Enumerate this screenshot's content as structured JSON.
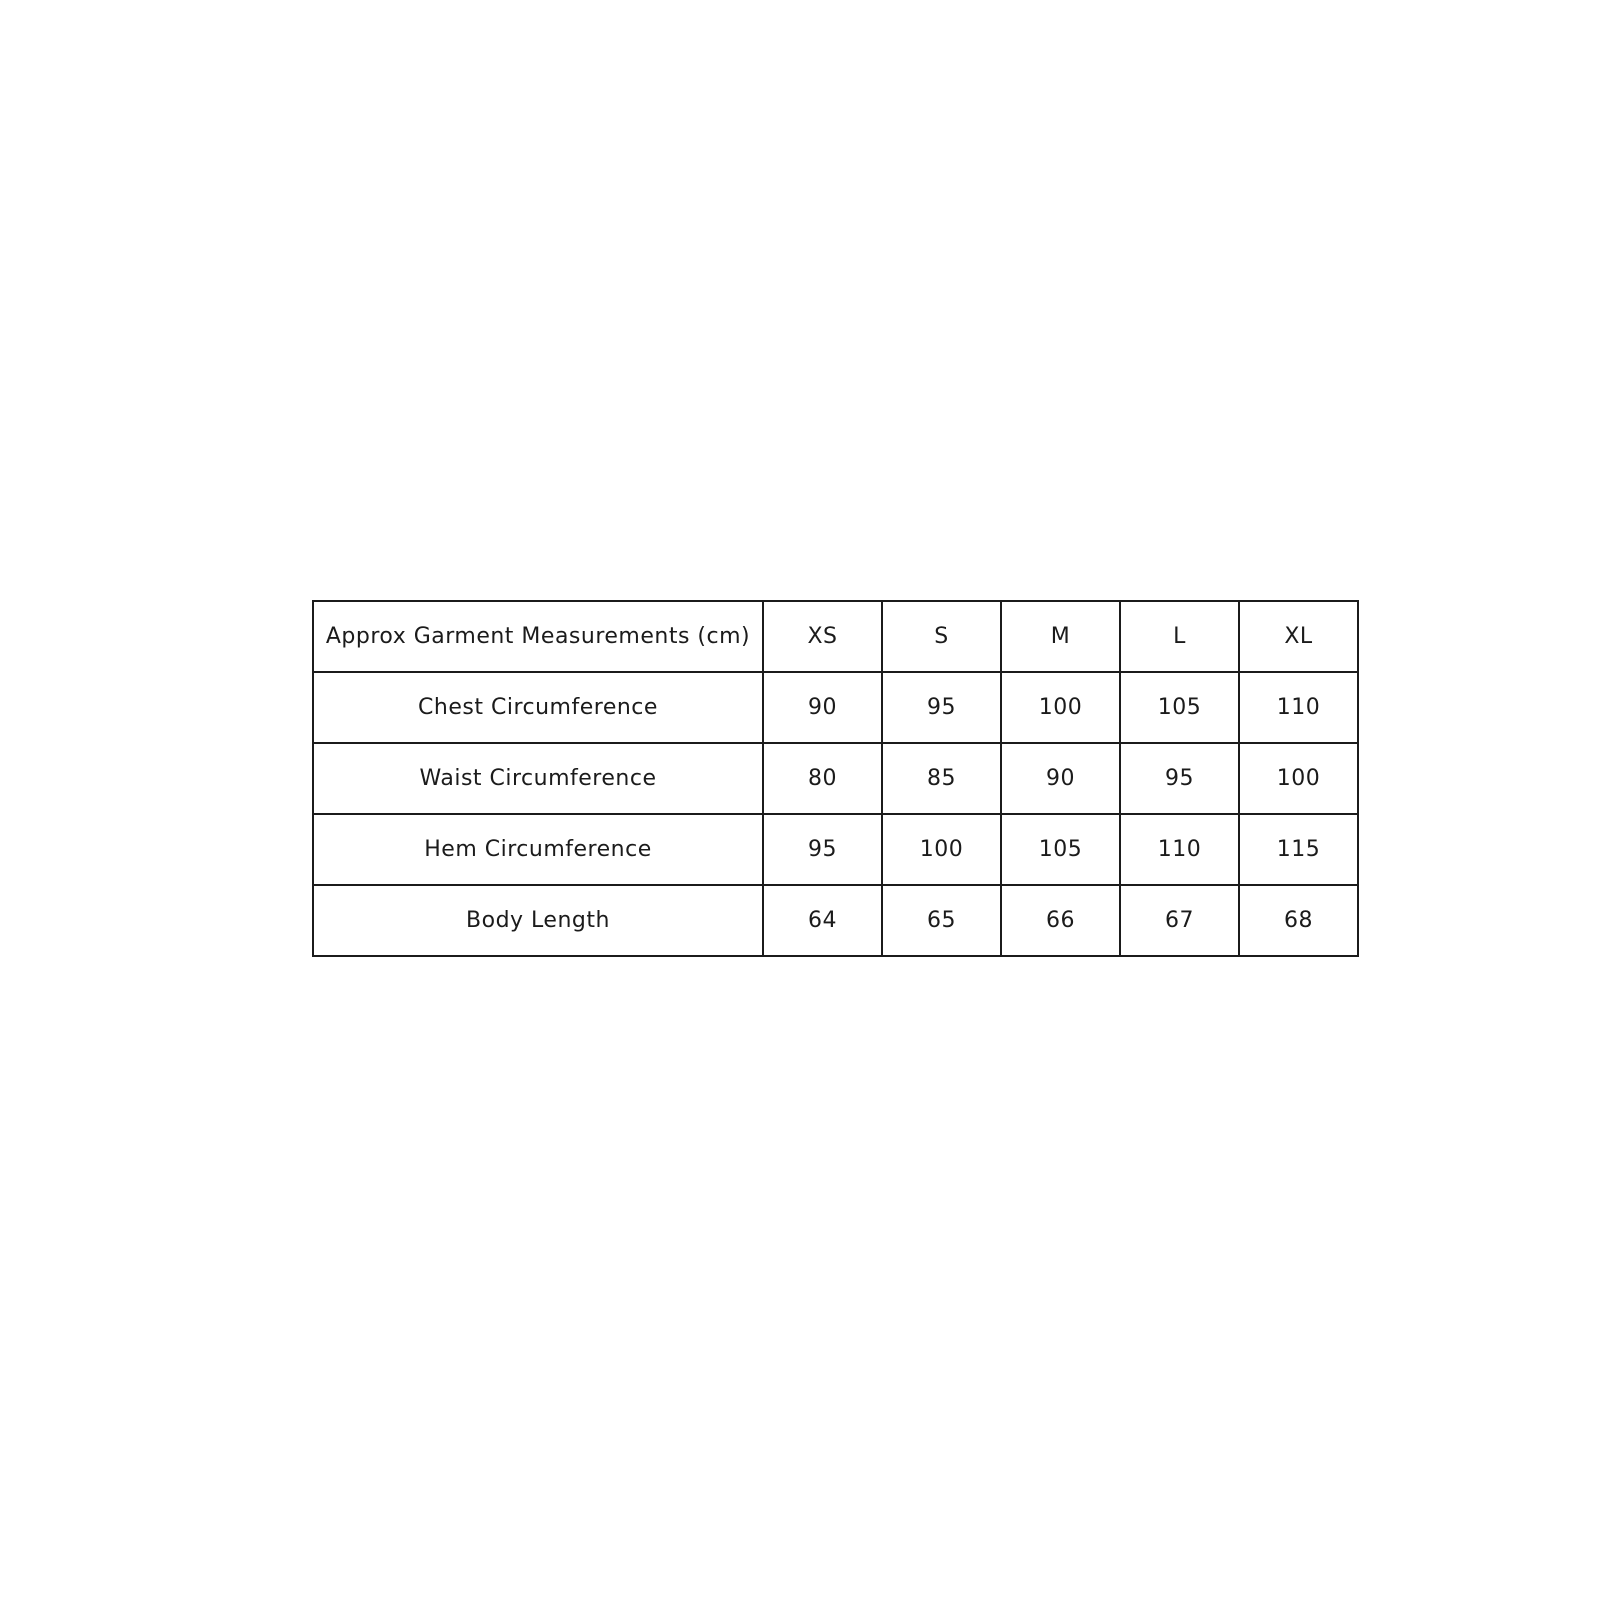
{
  "table": {
    "header": [
      "Approx Garment Measurements (cm)",
      "XS",
      "S",
      "M",
      "L",
      "XL"
    ],
    "rows": [
      {
        "label": "Chest Circumference",
        "values": [
          "90",
          "95",
          "100",
          "105",
          "110"
        ]
      },
      {
        "label": "Waist Circumference",
        "values": [
          "80",
          "85",
          "90",
          "95",
          "100"
        ]
      },
      {
        "label": "Hem Circumference",
        "values": [
          "95",
          "100",
          "105",
          "110",
          "115"
        ]
      },
      {
        "label": "Body Length",
        "values": [
          "64",
          "65",
          "66",
          "67",
          "68"
        ]
      }
    ]
  },
  "colors": {
    "background": "#ffffff",
    "border": "#1b1b1b",
    "text": "#1b1b1b"
  },
  "chart_data": {
    "type": "table",
    "title": "Approx Garment Measurements (cm)",
    "categories": [
      "XS",
      "S",
      "M",
      "L",
      "XL"
    ],
    "series": [
      {
        "name": "Chest Circumference",
        "values": [
          90,
          95,
          100,
          105,
          110
        ]
      },
      {
        "name": "Waist Circumference",
        "values": [
          80,
          85,
          90,
          95,
          100
        ]
      },
      {
        "name": "Hem Circumference",
        "values": [
          95,
          100,
          105,
          110,
          115
        ]
      },
      {
        "name": "Body Length",
        "values": [
          64,
          65,
          66,
          67,
          68
        ]
      }
    ]
  }
}
